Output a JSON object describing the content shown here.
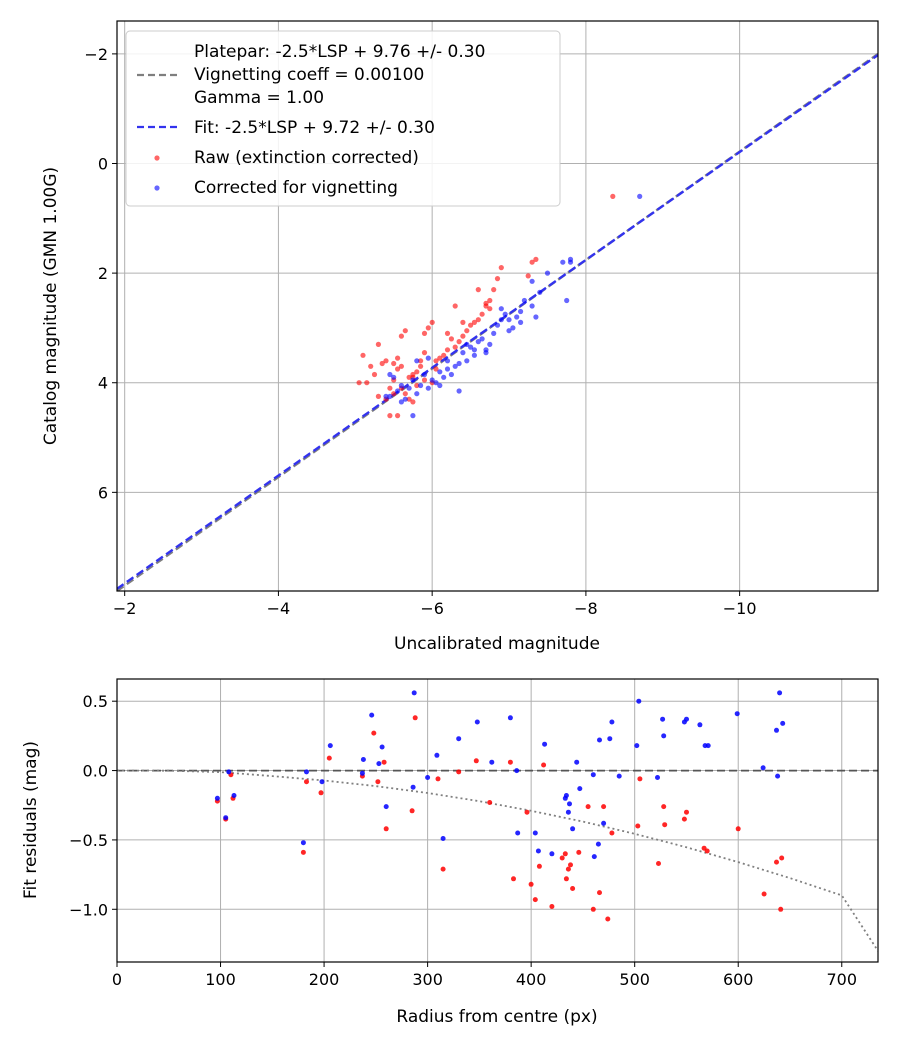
{
  "chart_data": [
    {
      "type": "scatter",
      "id": "calibration",
      "xlabel": "Uncalibrated magnitude",
      "ylabel": "Catalog magnitude (GMN 1.00G)",
      "xlim": [
        -1.9,
        -11.8
      ],
      "ylim": [
        7.8,
        -2.6
      ],
      "xticks": [
        -2,
        -4,
        -6,
        -8,
        -10
      ],
      "xtick_labels": [
        "−2",
        "−4",
        "−6",
        "−8",
        "−10"
      ],
      "yticks": [
        -2,
        0,
        2,
        4,
        6
      ],
      "ytick_labels": [
        "−2",
        "0",
        "2",
        "4",
        "6"
      ],
      "grid": true,
      "legend_position": "top-left",
      "legend": [
        {
          "label": "Platepar: -2.5*LSP + 9.76 +/- 0.30",
          "style": "none"
        },
        {
          "label": "Vignetting coeff = 0.00100",
          "style": "dashed-line",
          "color": "#7f7f7f"
        },
        {
          "label": "Gamma = 1.00",
          "style": "none"
        },
        {
          "label": "Fit: -2.5*LSP + 9.72 +/- 0.30",
          "style": "dashed-line",
          "color": "#3333ee"
        },
        {
          "label": "Raw (extinction corrected)",
          "style": "dot",
          "color": "#ff0000"
        },
        {
          "label": "Corrected for vignetting",
          "style": "dot",
          "color": "#0000ff"
        }
      ],
      "lines": [
        {
          "name": "Platepar",
          "color": "#7f7f7f",
          "x": [
            -1.9,
            -11.8
          ],
          "y": [
            7.8,
            -2.0
          ]
        },
        {
          "name": "Fit",
          "color": "#3333ee",
          "x": [
            -1.9,
            -11.8
          ],
          "y": [
            7.76,
            -1.98
          ]
        }
      ],
      "series": [
        {
          "name": "Raw (extinction corrected)",
          "color": "#ff0000",
          "x": [
            -8.35,
            -7.35,
            -7.3,
            -7.25,
            -6.9,
            -6.85,
            -6.8,
            -6.75,
            -6.7,
            -6.65,
            -6.6,
            -6.55,
            -6.5,
            -6.45,
            -6.4,
            -6.35,
            -6.3,
            -6.25,
            -6.2,
            -6.15,
            -6.1,
            -6.05,
            -6.0,
            -5.95,
            -5.9,
            -5.85,
            -5.8,
            -5.75,
            -5.7,
            -5.65,
            -5.6,
            -5.55,
            -5.5,
            -5.45,
            -5.4,
            -5.35,
            -5.3,
            -5.25,
            -5.2,
            -5.15,
            -5.1,
            -5.05,
            -5.65,
            -5.7,
            -5.75,
            -5.8,
            -6.0,
            -5.9,
            -5.55,
            -5.6,
            -5.5,
            -6.3,
            -6.4,
            -6.2,
            -6.6,
            -5.45,
            -5.3,
            -5.4,
            -5.85,
            -5.9,
            -6.05,
            -5.75,
            -5.55,
            -5.5,
            -5.6,
            -6.7,
            -6.75
          ],
          "y": [
            0.6,
            1.75,
            1.8,
            2.05,
            1.9,
            2.1,
            2.3,
            2.5,
            2.6,
            2.75,
            2.85,
            2.9,
            2.95,
            3.05,
            3.15,
            3.25,
            3.35,
            3.2,
            3.4,
            3.5,
            3.55,
            3.6,
            2.9,
            3.0,
            3.1,
            3.7,
            3.8,
            3.85,
            3.9,
            3.05,
            3.15,
            3.75,
            3.95,
            4.1,
            3.6,
            3.65,
            3.3,
            3.85,
            3.7,
            4.0,
            3.5,
            4.0,
            4.2,
            4.3,
            4.35,
            4.05,
            4.0,
            3.95,
            4.6,
            4.1,
            4.2,
            2.6,
            2.9,
            3.1,
            2.3,
            4.6,
            4.25,
            4.3,
            3.6,
            3.45,
            3.75,
            3.9,
            3.55,
            3.65,
            3.7,
            2.55,
            2.65
          ]
        },
        {
          "name": "Corrected for vignetting",
          "color": "#0000ff",
          "x": [
            -8.7,
            -7.8,
            -7.75,
            -7.7,
            -7.5,
            -7.4,
            -7.35,
            -7.3,
            -7.2,
            -7.15,
            -7.1,
            -7.05,
            -7.0,
            -6.95,
            -6.9,
            -6.85,
            -6.8,
            -6.75,
            -6.7,
            -6.65,
            -6.6,
            -6.55,
            -6.5,
            -6.45,
            -6.4,
            -6.35,
            -6.3,
            -6.25,
            -6.2,
            -6.15,
            -6.1,
            -6.05,
            -6.0,
            -5.95,
            -5.9,
            -5.85,
            -5.8,
            -5.75,
            -5.7,
            -5.65,
            -5.6,
            -5.55,
            -5.5,
            -5.45,
            -5.4,
            -7.3,
            -7.15,
            -7.0,
            -6.9,
            -7.8,
            -6.55,
            -6.45,
            -6.2,
            -5.95,
            -5.8,
            -5.75,
            -5.6,
            -5.45,
            -6.1,
            -6.35,
            -6.7
          ],
          "y": [
            0.6,
            1.75,
            2.5,
            1.8,
            2.0,
            2.35,
            2.8,
            2.6,
            2.5,
            2.9,
            2.8,
            3.0,
            3.05,
            2.75,
            2.85,
            2.95,
            3.1,
            3.3,
            3.45,
            3.2,
            3.25,
            3.4,
            3.35,
            3.6,
            3.45,
            3.65,
            3.7,
            3.85,
            3.75,
            3.9,
            3.8,
            4.0,
            3.95,
            4.1,
            3.85,
            4.05,
            4.2,
            3.95,
            4.1,
            4.3,
            4.05,
            4.15,
            3.9,
            3.85,
            4.25,
            2.15,
            2.7,
            2.85,
            2.65,
            1.8,
            3.5,
            3.3,
            3.6,
            3.55,
            3.6,
            4.6,
            4.35,
            4.25,
            4.05,
            4.15,
            3.4
          ]
        }
      ]
    },
    {
      "type": "scatter",
      "id": "residuals",
      "xlabel": "Radius from centre (px)",
      "ylabel": "Fit residuals (mag)",
      "xlim": [
        0,
        735
      ],
      "ylim": [
        -1.38,
        0.66
      ],
      "xticks": [
        0,
        100,
        200,
        300,
        400,
        500,
        600,
        700
      ],
      "xtick_labels": [
        "0",
        "100",
        "200",
        "300",
        "400",
        "500",
        "600",
        "700"
      ],
      "yticks": [
        0.5,
        0.0,
        -0.5,
        -1.0
      ],
      "ytick_labels": [
        "0.5",
        "0.0",
        "−0.5",
        "−1.0"
      ],
      "grid": true,
      "lines": [
        {
          "name": "zero",
          "style": "dashed",
          "color": "#555555",
          "x": [
            0,
            735
          ],
          "y": [
            0,
            0
          ]
        },
        {
          "name": "vignetting model",
          "style": "dotted",
          "color": "#808080",
          "x": [
            0,
            50,
            100,
            150,
            200,
            250,
            300,
            350,
            400,
            450,
            500,
            550,
            600,
            650,
            700,
            735
          ],
          "y": [
            0,
            -0.001,
            -0.011,
            -0.04,
            -0.072,
            -0.112,
            -0.162,
            -0.221,
            -0.29,
            -0.368,
            -0.456,
            -0.553,
            -0.66,
            -0.775,
            -0.9,
            -1.3
          ]
        }
      ],
      "series": [
        {
          "name": "Raw (extinction corrected)",
          "color": "#ff0000",
          "x": [
            97,
            105,
            110,
            112,
            180,
            183,
            197,
            205,
            237,
            248,
            252,
            258,
            260,
            285,
            288,
            310,
            315,
            330,
            347,
            360,
            380,
            383,
            396,
            400,
            404,
            408,
            412,
            420,
            430,
            433,
            434,
            436,
            438,
            440,
            446,
            455,
            460,
            466,
            470,
            474,
            478,
            503,
            505,
            523,
            528,
            529,
            548,
            550,
            567,
            570,
            600,
            625,
            637,
            641,
            642
          ],
          "y": [
            -0.22,
            -0.35,
            -0.03,
            -0.2,
            -0.59,
            -0.08,
            -0.16,
            0.09,
            -0.04,
            0.27,
            -0.08,
            0.06,
            -0.42,
            -0.29,
            0.38,
            -0.06,
            -0.71,
            -0.01,
            0.07,
            -0.23,
            0.06,
            -0.78,
            -0.3,
            -0.82,
            -0.93,
            -0.69,
            0.04,
            -0.98,
            -0.63,
            -0.6,
            -0.78,
            -0.71,
            -0.68,
            -0.85,
            -0.59,
            -0.26,
            -1.0,
            -0.88,
            -0.26,
            -1.07,
            -0.45,
            -0.4,
            -0.06,
            -0.67,
            -0.26,
            -0.39,
            -0.35,
            -0.3,
            -0.56,
            -0.58,
            -0.42,
            -0.89,
            -0.66,
            -1.0,
            -0.63
          ]
        },
        {
          "name": "Corrected for vignetting",
          "color": "#0000ff",
          "x": [
            97,
            105,
            108,
            113,
            180,
            183,
            198,
            206,
            237,
            238,
            246,
            253,
            256,
            260,
            286,
            287,
            300,
            309,
            315,
            330,
            348,
            362,
            380,
            386,
            387,
            404,
            407,
            413,
            420,
            433,
            434,
            436,
            437,
            440,
            444,
            447,
            460,
            461,
            465,
            466,
            470,
            476,
            478,
            485,
            502,
            504,
            522,
            527,
            528,
            548,
            550,
            563,
            568,
            571,
            599,
            624,
            637,
            638,
            640,
            643
          ],
          "y": [
            -0.2,
            -0.34,
            -0.01,
            -0.18,
            -0.52,
            -0.01,
            -0.08,
            0.18,
            -0.02,
            0.08,
            0.4,
            0.05,
            0.17,
            -0.26,
            -0.12,
            0.56,
            -0.05,
            0.11,
            -0.49,
            0.23,
            0.35,
            0.06,
            0.38,
            0.0,
            -0.45,
            -0.45,
            -0.58,
            0.19,
            -0.6,
            -0.2,
            -0.18,
            -0.3,
            -0.24,
            -0.42,
            0.06,
            -0.13,
            -0.03,
            -0.62,
            -0.53,
            0.22,
            -0.38,
            0.23,
            0.35,
            -0.04,
            0.18,
            0.5,
            -0.05,
            0.37,
            0.25,
            0.35,
            0.37,
            0.33,
            0.18,
            0.18,
            0.41,
            0.02,
            0.29,
            -0.04,
            0.56,
            0.34
          ]
        }
      ]
    }
  ]
}
